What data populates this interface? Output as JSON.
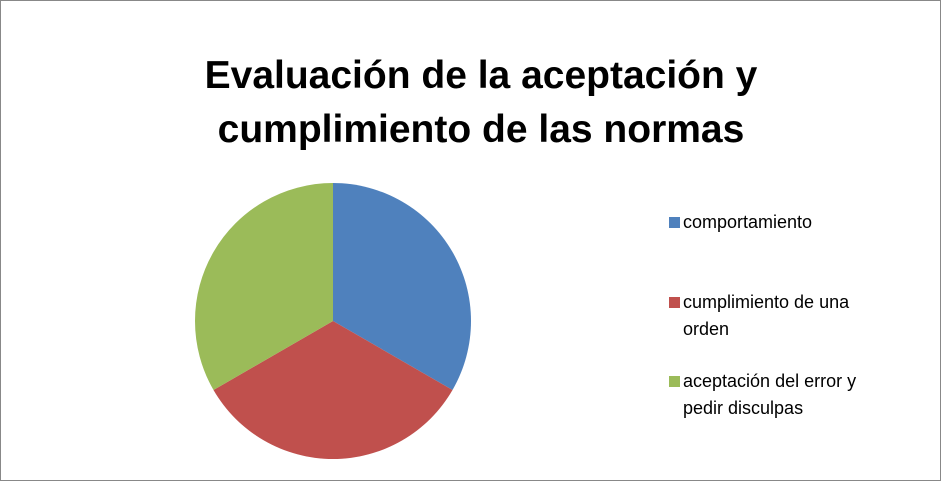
{
  "chart_data": {
    "type": "pie",
    "title": "Evaluación de la aceptación y cumplimiento de las normas",
    "categories": [
      "comportamiento",
      "cumplimiento de una orden",
      "aceptación del error y pedir disculpas"
    ],
    "values": [
      33.3,
      33.3,
      33.3
    ],
    "colors": [
      "#4f81bd",
      "#c0504d",
      "#9bbb59"
    ],
    "legend": "right"
  }
}
